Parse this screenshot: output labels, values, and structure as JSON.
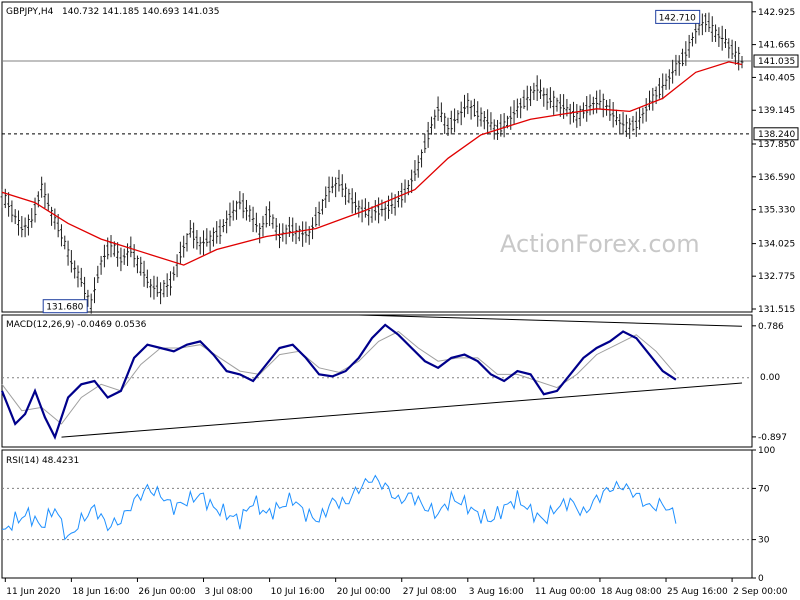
{
  "chart_data": {
    "type": "candlestick",
    "symbol_header": {
      "title": "GBPJPY,H4",
      "ohlc": "140.732 141.185 140.693 141.035"
    },
    "watermark": "ActionForex.com",
    "colors": {
      "background": "#ffffff",
      "price_bars": "#1f1f1f",
      "moving_average": "#e00000",
      "macd_line": "#00008b",
      "macd_signal": "#a0a0a0",
      "trendline": "#000000",
      "rsi_line": "#1e90ff",
      "levels": "#808080"
    },
    "price_pane": {
      "y_axis_ticks": [
        "142.925",
        "141.665",
        "140.405",
        "139.145",
        "137.850",
        "136.590",
        "135.330",
        "134.025",
        "132.775",
        "131.515"
      ],
      "y_range": [
        131.4,
        143.3
      ],
      "last_price_label": "141.035",
      "last_price": 141.035,
      "support_label": "138.240",
      "support_level": 138.24,
      "high_annotation": "142.710",
      "high_value": 142.71,
      "low_annotation": "131.680",
      "low_value": 131.68
    },
    "price_path": [
      [
        0,
        135.9
      ],
      [
        3,
        135.3
      ],
      [
        6,
        134.6
      ],
      [
        9,
        134.9
      ],
      [
        12,
        136.2
      ],
      [
        15,
        135.2
      ],
      [
        18,
        134.4
      ],
      [
        21,
        133.3
      ],
      [
        24,
        132.6
      ],
      [
        27,
        131.7
      ],
      [
        30,
        133.3
      ],
      [
        33,
        134.0
      ],
      [
        36,
        133.4
      ],
      [
        39,
        133.8
      ],
      [
        42,
        133.1
      ],
      [
        45,
        132.4
      ],
      [
        48,
        132.2
      ],
      [
        51,
        132.5
      ],
      [
        54,
        133.6
      ],
      [
        57,
        134.5
      ],
      [
        60,
        134.0
      ],
      [
        63,
        134.2
      ],
      [
        66,
        134.5
      ],
      [
        69,
        135.1
      ],
      [
        72,
        135.6
      ],
      [
        75,
        135.2
      ],
      [
        78,
        134.5
      ],
      [
        81,
        135.2
      ],
      [
        84,
        134.3
      ],
      [
        87,
        134.6
      ],
      [
        90,
        134.4
      ],
      [
        93,
        134.4
      ],
      [
        96,
        135.2
      ],
      [
        99,
        136.1
      ],
      [
        102,
        136.4
      ],
      [
        105,
        135.8
      ],
      [
        108,
        135.4
      ],
      [
        111,
        135.2
      ],
      [
        114,
        135.3
      ],
      [
        117,
        135.4
      ],
      [
        120,
        135.7
      ],
      [
        123,
        136.2
      ],
      [
        126,
        137.0
      ],
      [
        129,
        138.2
      ],
      [
        132,
        139.2
      ],
      [
        135,
        138.5
      ],
      [
        138,
        138.9
      ],
      [
        141,
        139.4
      ],
      [
        144,
        139.0
      ],
      [
        147,
        138.7
      ],
      [
        150,
        138.4
      ],
      [
        153,
        138.7
      ],
      [
        156,
        139.2
      ],
      [
        159,
        139.6
      ],
      [
        162,
        140.0
      ],
      [
        165,
        139.6
      ],
      [
        168,
        139.4
      ],
      [
        171,
        139.2
      ],
      [
        174,
        138.9
      ],
      [
        177,
        139.2
      ],
      [
        180,
        139.5
      ],
      [
        183,
        139.3
      ],
      [
        186,
        138.8
      ],
      [
        189,
        138.5
      ],
      [
        192,
        138.6
      ],
      [
        195,
        139.2
      ],
      [
        198,
        139.8
      ],
      [
        201,
        140.2
      ],
      [
        204,
        140.8
      ],
      [
        207,
        141.3
      ],
      [
        210,
        142.2
      ],
      [
        213,
        142.6
      ],
      [
        216,
        142.1
      ],
      [
        219,
        141.8
      ],
      [
        222,
        141.3
      ],
      [
        224,
        141.0
      ]
    ],
    "moving_average_path": [
      [
        0,
        136.0
      ],
      [
        10,
        135.6
      ],
      [
        20,
        134.8
      ],
      [
        30,
        134.2
      ],
      [
        45,
        133.6
      ],
      [
        55,
        133.2
      ],
      [
        65,
        133.8
      ],
      [
        80,
        134.3
      ],
      [
        95,
        134.6
      ],
      [
        110,
        135.3
      ],
      [
        125,
        136.1
      ],
      [
        135,
        137.3
      ],
      [
        145,
        138.2
      ],
      [
        160,
        138.8
      ],
      [
        170,
        139.0
      ],
      [
        180,
        139.2
      ],
      [
        190,
        139.1
      ],
      [
        200,
        139.6
      ],
      [
        210,
        140.6
      ],
      [
        220,
        141.0
      ],
      [
        224,
        140.9
      ]
    ],
    "macd_pane": {
      "title": "MACD(12,26,9) -0.0469 0.0536",
      "macd_value": -0.0469,
      "signal_value": 0.0536,
      "y_axis_ticks": [
        "0.786",
        "0.00",
        "-0.897"
      ],
      "y_range": [
        -1.05,
        0.95
      ],
      "zero_label": "0.00",
      "macd_path": [
        [
          0,
          -0.2
        ],
        [
          4,
          -0.7
        ],
        [
          7,
          -0.55
        ],
        [
          10,
          -0.2
        ],
        [
          13,
          -0.6
        ],
        [
          16,
          -0.9
        ],
        [
          20,
          -0.3
        ],
        [
          24,
          -0.1
        ],
        [
          28,
          -0.05
        ],
        [
          32,
          -0.3
        ],
        [
          36,
          -0.2
        ],
        [
          40,
          0.3
        ],
        [
          44,
          0.5
        ],
        [
          48,
          0.45
        ],
        [
          52,
          0.4
        ],
        [
          56,
          0.5
        ],
        [
          60,
          0.55
        ],
        [
          64,
          0.35
        ],
        [
          68,
          0.1
        ],
        [
          72,
          0.05
        ],
        [
          76,
          -0.05
        ],
        [
          80,
          0.2
        ],
        [
          84,
          0.45
        ],
        [
          88,
          0.5
        ],
        [
          92,
          0.3
        ],
        [
          96,
          0.05
        ],
        [
          100,
          0.02
        ],
        [
          104,
          0.1
        ],
        [
          108,
          0.3
        ],
        [
          112,
          0.6
        ],
        [
          116,
          0.8
        ],
        [
          120,
          0.65
        ],
        [
          124,
          0.45
        ],
        [
          128,
          0.25
        ],
        [
          132,
          0.15
        ],
        [
          136,
          0.3
        ],
        [
          140,
          0.35
        ],
        [
          144,
          0.25
        ],
        [
          148,
          0.05
        ],
        [
          152,
          -0.05
        ],
        [
          156,
          0.1
        ],
        [
          160,
          0.05
        ],
        [
          164,
          -0.25
        ],
        [
          168,
          -0.2
        ],
        [
          172,
          0.05
        ],
        [
          176,
          0.3
        ],
        [
          180,
          0.45
        ],
        [
          184,
          0.55
        ],
        [
          188,
          0.7
        ],
        [
          192,
          0.6
        ],
        [
          196,
          0.35
        ],
        [
          200,
          0.1
        ],
        [
          204,
          -0.03
        ]
      ],
      "signal_path": [
        [
          0,
          -0.1
        ],
        [
          6,
          -0.5
        ],
        [
          12,
          -0.45
        ],
        [
          18,
          -0.7
        ],
        [
          24,
          -0.3
        ],
        [
          30,
          -0.1
        ],
        [
          36,
          -0.2
        ],
        [
          42,
          0.2
        ],
        [
          48,
          0.45
        ],
        [
          54,
          0.45
        ],
        [
          60,
          0.5
        ],
        [
          66,
          0.3
        ],
        [
          72,
          0.1
        ],
        [
          78,
          0.05
        ],
        [
          84,
          0.35
        ],
        [
          90,
          0.4
        ],
        [
          96,
          0.15
        ],
        [
          102,
          0.08
        ],
        [
          108,
          0.25
        ],
        [
          114,
          0.55
        ],
        [
          120,
          0.7
        ],
        [
          126,
          0.45
        ],
        [
          132,
          0.25
        ],
        [
          138,
          0.3
        ],
        [
          144,
          0.3
        ],
        [
          150,
          0.05
        ],
        [
          156,
          0.05
        ],
        [
          162,
          -0.05
        ],
        [
          168,
          -0.15
        ],
        [
          174,
          0.05
        ],
        [
          180,
          0.35
        ],
        [
          186,
          0.5
        ],
        [
          192,
          0.65
        ],
        [
          198,
          0.4
        ],
        [
          204,
          0.05
        ]
      ],
      "trendline_upper": [
        [
          108,
          0.95
        ],
        [
          224,
          0.78
        ]
      ],
      "trendline_lower": [
        [
          18,
          -0.9
        ],
        [
          224,
          -0.08
        ]
      ]
    },
    "rsi_pane": {
      "title": "RSI(14) 48.4231",
      "rsi_value": 48.4231,
      "y_axis_ticks": [
        "100",
        "70",
        "30",
        "0"
      ],
      "y_range": [
        0,
        100
      ],
      "levels": [
        70,
        30
      ],
      "rsi_path": [
        [
          0,
          35
        ],
        [
          4,
          45
        ],
        [
          8,
          50
        ],
        [
          12,
          40
        ],
        [
          16,
          55
        ],
        [
          20,
          30
        ],
        [
          24,
          45
        ],
        [
          28,
          55
        ],
        [
          32,
          40
        ],
        [
          36,
          45
        ],
        [
          40,
          60
        ],
        [
          44,
          70
        ],
        [
          48,
          65
        ],
        [
          52,
          55
        ],
        [
          56,
          60
        ],
        [
          60,
          65
        ],
        [
          64,
          55
        ],
        [
          68,
          50
        ],
        [
          72,
          45
        ],
        [
          76,
          60
        ],
        [
          80,
          50
        ],
        [
          84,
          55
        ],
        [
          88,
          62
        ],
        [
          92,
          50
        ],
        [
          96,
          45
        ],
        [
          100,
          60
        ],
        [
          104,
          58
        ],
        [
          108,
          70
        ],
        [
          112,
          78
        ],
        [
          116,
          72
        ],
        [
          120,
          60
        ],
        [
          124,
          65
        ],
        [
          128,
          55
        ],
        [
          132,
          50
        ],
        [
          136,
          62
        ],
        [
          140,
          58
        ],
        [
          144,
          50
        ],
        [
          148,
          45
        ],
        [
          152,
          55
        ],
        [
          156,
          62
        ],
        [
          160,
          52
        ],
        [
          164,
          45
        ],
        [
          168,
          55
        ],
        [
          172,
          60
        ],
        [
          176,
          50
        ],
        [
          180,
          62
        ],
        [
          184,
          70
        ],
        [
          188,
          72
        ],
        [
          192,
          65
        ],
        [
          196,
          55
        ],
        [
          200,
          58
        ],
        [
          204,
          48
        ]
      ]
    },
    "x_axis": {
      "labels": [
        "11 Jun 2020",
        "18 Jun 16:00",
        "26 Jun 00:00",
        "3 Jul 08:00",
        "10 Jul 16:00",
        "20 Jul 00:00",
        "27 Jul 08:00",
        "3 Aug 16:00",
        "11 Aug 00:00",
        "18 Aug 08:00",
        "25 Aug 16:00",
        "2 Sep 00:00"
      ]
    }
  }
}
